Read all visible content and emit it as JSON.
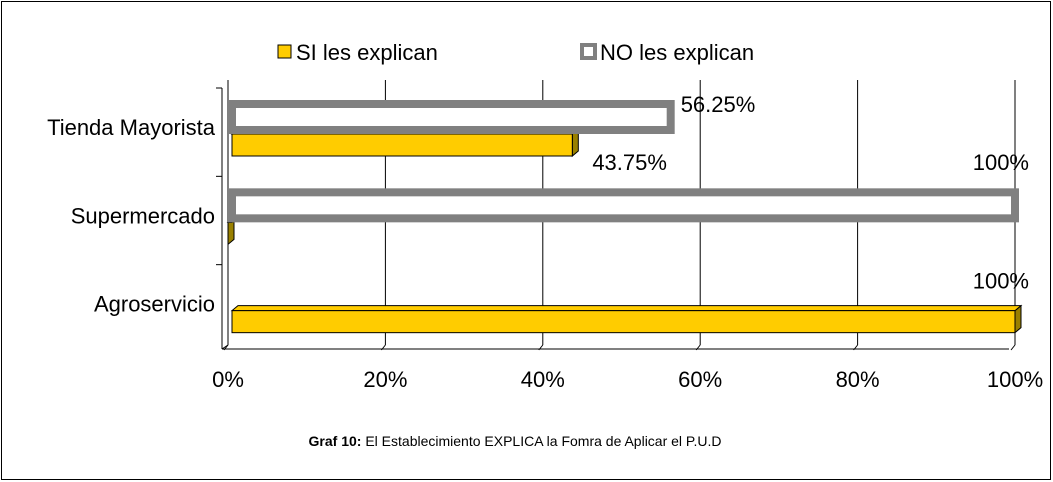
{
  "chart_data": {
    "type": "bar",
    "orientation": "horizontal",
    "categories": [
      "Tienda Mayorista",
      "Supermercado",
      "Agroservicio"
    ],
    "series": [
      {
        "name": "SI les explican",
        "color": "#ffcc00",
        "values": [
          43.75,
          0,
          100
        ],
        "value_labels": [
          "43.75%",
          null,
          "100%"
        ]
      },
      {
        "name": "NO les explican",
        "color": "#808080",
        "values": [
          56.25,
          100,
          0
        ],
        "value_labels": [
          "56.25%",
          "100%",
          null
        ]
      }
    ],
    "xlim": [
      0,
      100
    ],
    "xticks": [
      {
        "value": 0,
        "label": "0%"
      },
      {
        "value": 20,
        "label": "20%"
      },
      {
        "value": 40,
        "label": "40%"
      },
      {
        "value": 60,
        "label": "60%"
      },
      {
        "value": 80,
        "label": "80%"
      },
      {
        "value": 100,
        "label": "100%"
      }
    ],
    "grid": true,
    "legend": "top",
    "caption": {
      "label": "Graf 10:",
      "text": "El Establecimiento EXPLICA la Fomra de Aplicar el P.U.D"
    }
  }
}
